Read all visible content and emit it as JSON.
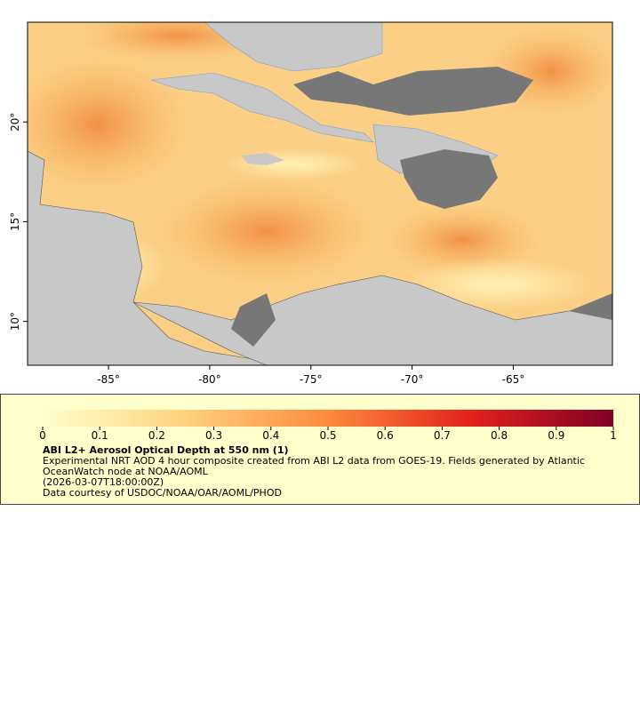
{
  "map": {
    "xlim": [
      -89,
      -60.1
    ],
    "ylim": [
      7.8,
      25
    ],
    "xticks": [
      {
        "value": -85,
        "label": "-85°"
      },
      {
        "value": -80,
        "label": "-80°"
      },
      {
        "value": -75,
        "label": "-75°"
      },
      {
        "value": -70,
        "label": "-70°"
      },
      {
        "value": -65,
        "label": "-65°"
      }
    ],
    "yticks": [
      {
        "value": 10,
        "label": "10°"
      },
      {
        "value": 15,
        "label": "15°"
      },
      {
        "value": 20,
        "label": "20°"
      }
    ]
  },
  "colorbar": {
    "lim": [
      0,
      1
    ],
    "ticks": [
      0,
      0.1,
      0.2,
      0.3,
      0.4,
      0.5,
      0.6,
      0.7,
      0.8,
      0.9,
      1
    ]
  },
  "legend": {
    "title": "ABI L2+ Aerosol Optical Depth at 550 nm (1)",
    "description": "Experimental NRT AOD 4 hour composite created from ABI L2 data from GOES-19. Fields generated by Atlantic OceanWatch node at NOAA/AOML",
    "time": "(2026-03-07T18:00:00Z)",
    "credit": "Data courtesy of USDOC/NOAA/OAR/AOML/PHOD"
  }
}
